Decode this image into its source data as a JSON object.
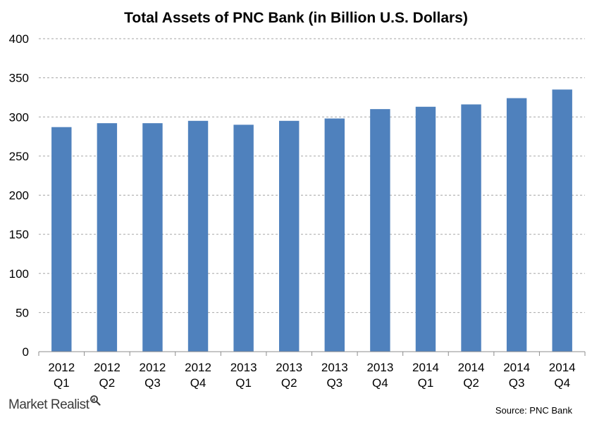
{
  "chart_data": {
    "type": "bar",
    "title": "Total Assets of PNC Bank (in Billion U.S. Dollars)",
    "categories": [
      [
        "2012",
        "Q1"
      ],
      [
        "2012",
        "Q2"
      ],
      [
        "2012",
        "Q3"
      ],
      [
        "2012",
        "Q4"
      ],
      [
        "2013",
        "Q1"
      ],
      [
        "2013",
        "Q2"
      ],
      [
        "2013",
        "Q3"
      ],
      [
        "2013",
        "Q4"
      ],
      [
        "2014",
        "Q1"
      ],
      [
        "2014",
        "Q2"
      ],
      [
        "2014",
        "Q3"
      ],
      [
        "2014",
        "Q4"
      ]
    ],
    "values": [
      287,
      292,
      292,
      295,
      290,
      295,
      298,
      310,
      313,
      316,
      324,
      335
    ],
    "xlabel": "",
    "ylabel": "",
    "ylim": [
      0,
      400
    ],
    "yticks": [
      0,
      50,
      100,
      150,
      200,
      250,
      300,
      350,
      400
    ],
    "grid": "horizontal dashed",
    "legend": "none",
    "bar_color": "#4f81bd"
  },
  "branding": {
    "name": "Market Realist",
    "icon": "magnifier-icon"
  },
  "source": "Source: PNC Bank"
}
